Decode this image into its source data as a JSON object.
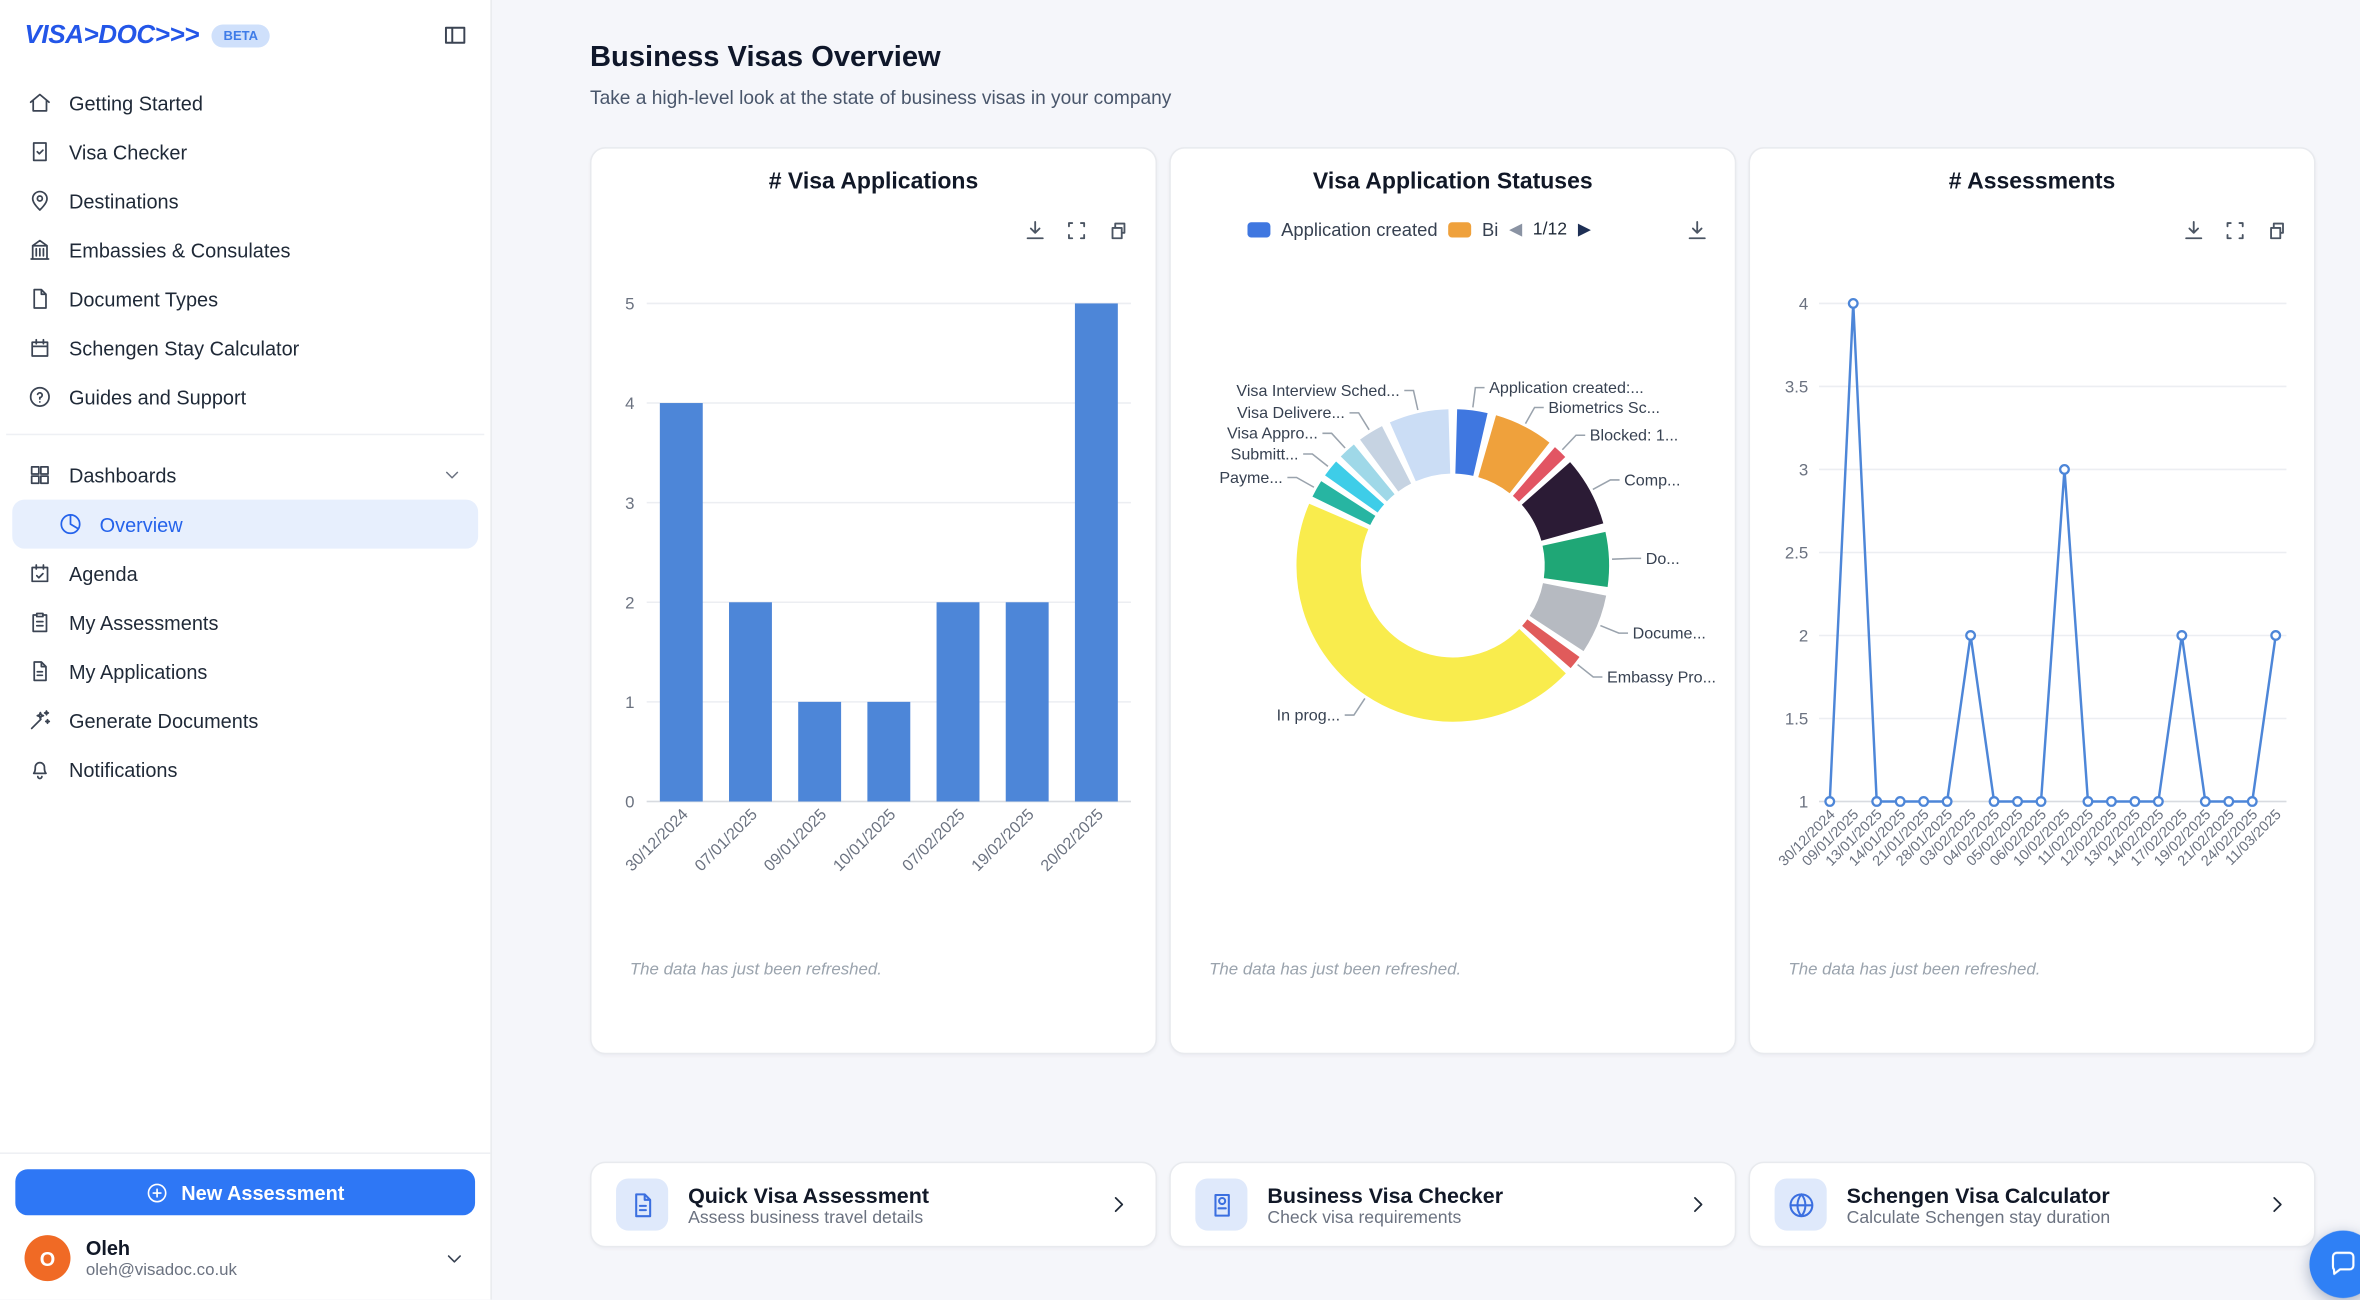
{
  "app": {
    "logo": "VISA>DOC>>>",
    "beta": "BETA",
    "toggle_icon": "panel"
  },
  "sidebar": {
    "items": [
      {
        "label": "Getting Started",
        "icon": "home"
      },
      {
        "label": "Visa Checker",
        "icon": "visa"
      },
      {
        "label": "Destinations",
        "icon": "pin"
      },
      {
        "label": "Embassies & Consulates",
        "icon": "building"
      },
      {
        "label": "Document Types",
        "icon": "doc"
      },
      {
        "label": "Schengen Stay Calculator",
        "icon": "calendar"
      },
      {
        "label": "Guides and Support",
        "icon": "help"
      }
    ],
    "dashboards": {
      "label": "Dashboards",
      "icon": "grid",
      "chevron": "chevron-down",
      "children": [
        {
          "label": "Overview",
          "icon": "pie",
          "active": true
        }
      ]
    },
    "items2": [
      {
        "label": "Agenda",
        "icon": "agenda"
      },
      {
        "label": "My Assessments",
        "icon": "clipboard"
      },
      {
        "label": "My Applications",
        "icon": "file"
      },
      {
        "label": "Generate Documents",
        "icon": "wand"
      },
      {
        "label": "Notifications",
        "icon": "bell"
      }
    ],
    "new_assessment": "New Assessment",
    "new_assessment_icon": "plus",
    "user": {
      "initial": "O",
      "name": "Oleh",
      "email": "oleh@visadoc.co.uk",
      "chevron": "chevron-down"
    }
  },
  "header": {
    "title": "Business Visas Overview",
    "subtitle": "Take a high-level look at the state of business visas in your company"
  },
  "chart_data": [
    {
      "type": "bar",
      "title": "# Visa Applications",
      "categories": [
        "30/12/2024",
        "07/01/2025",
        "09/01/2025",
        "10/01/2025",
        "07/02/2025",
        "19/02/2025",
        "20/02/2025"
      ],
      "values": [
        4,
        2,
        1,
        1,
        2,
        2,
        5
      ],
      "ylim": [
        0,
        5
      ],
      "yticks": [
        0,
        1,
        2,
        3,
        4,
        5
      ],
      "bar_color": "#4d86d8",
      "grid": true,
      "toolbar_icons": [
        "download",
        "export",
        "window"
      ],
      "note": "The data has just been refreshed."
    },
    {
      "type": "pie",
      "title": "Visa Application Statuses",
      "legend": {
        "items": [
          {
            "label": "Application created",
            "color": "#3f77e0"
          },
          {
            "label": "Bi",
            "color": "#efa13c"
          }
        ],
        "page": "1/12",
        "prev_icon": "triangle-left",
        "next_icon": "triangle-right"
      },
      "segments": [
        {
          "label": "Application created:...",
          "color": "#3f77e0",
          "value": 4
        },
        {
          "label": "Biometrics Sc...",
          "color": "#efa13c",
          "value": 7
        },
        {
          "label": "Blocked: 1...",
          "color": "#e25563",
          "value": 2
        },
        {
          "label": "Comp...",
          "color": "#2b1b35",
          "value": 8
        },
        {
          "label": "Do...",
          "color": "#1fa776",
          "value": 6.5
        },
        {
          "label": "Docume...",
          "color": "#b6bac1",
          "value": 7
        },
        {
          "label": "Embassy Pro...",
          "color": "#e05b5b",
          "value": 2
        },
        {
          "label": "In prog...",
          "color": "#f9ec4d",
          "value": 45
        },
        {
          "label": "Payme...",
          "color": "#27b5a2",
          "value": 2.5
        },
        {
          "label": "Submitt...",
          "color": "#3ecde8",
          "value": 2.5
        },
        {
          "label": "Visa Appro...",
          "color": "#9fd8e8",
          "value": 2.5
        },
        {
          "label": "Visa Delivere...",
          "color": "#c6d3e2",
          "value": 3.5
        },
        {
          "label": "Visa Interview Sched...",
          "color": "#cbddf5",
          "value": 7
        }
      ],
      "toolbar_icons": [
        "download"
      ],
      "note": "The data has just been refreshed."
    },
    {
      "type": "line",
      "title": "# Assessments",
      "categories": [
        "30/12/2024",
        "09/01/2025",
        "13/01/2025",
        "14/01/2025",
        "21/01/2025",
        "28/01/2025",
        "03/02/2025",
        "04/02/2025",
        "05/02/2025",
        "06/02/2025",
        "10/02/2025",
        "11/02/2025",
        "12/02/2025",
        "13/02/2025",
        "14/02/2025",
        "17/02/2025",
        "19/02/2025",
        "21/02/2025",
        "24/02/2025",
        "11/03/2025"
      ],
      "values": [
        1,
        4,
        1,
        1,
        1,
        1,
        2,
        1,
        1,
        1,
        3,
        1,
        1,
        1,
        1,
        2,
        1,
        1,
        1,
        2
      ],
      "ylim": [
        1,
        4
      ],
      "yticks": [
        1,
        1.5,
        2,
        2.5,
        3,
        3.5,
        4
      ],
      "line_color": "#4d86d8",
      "grid": true,
      "toolbar_icons": [
        "download",
        "export",
        "window"
      ],
      "note": "The data has just been refreshed."
    }
  ],
  "actions": [
    {
      "title": "Quick Visa Assessment",
      "subtitle": "Assess business travel details",
      "icon": "file",
      "chevron": "chevron-right"
    },
    {
      "title": "Business Visa Checker",
      "subtitle": "Check visa requirements",
      "icon": "passport",
      "chevron": "chevron-right"
    },
    {
      "title": "Schengen Visa Calculator",
      "subtitle": "Calculate Schengen stay duration",
      "icon": "globe",
      "chevron": "chevron-right"
    }
  ],
  "fab": {
    "icon": "chat"
  }
}
